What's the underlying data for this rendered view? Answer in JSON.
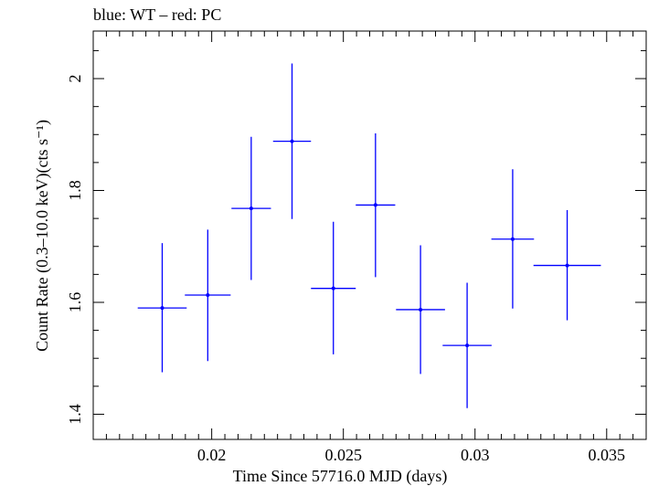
{
  "chart_data": {
    "type": "scatter",
    "title": "blue: WT – red: PC",
    "xlabel": "Time Since 57716.0 MJD (days)",
    "ylabel": "Count Rate (0.3–10.0 keV)(cts s⁻¹)",
    "xlim": [
      0.0155,
      0.0365
    ],
    "ylim": [
      1.355,
      2.085
    ],
    "x_major_ticks": [
      0.02,
      0.025,
      0.03,
      0.035
    ],
    "x_tick_labels": [
      "0.02",
      "0.025",
      "0.03",
      "0.035"
    ],
    "y_major_ticks": [
      1.4,
      1.6,
      1.8,
      2.0
    ],
    "y_tick_labels": [
      "1.4",
      "1.6",
      "1.8",
      "2"
    ],
    "grid": false,
    "legend": "none",
    "series": [
      {
        "color": "#0000ff",
        "points": [
          {
            "x": 0.01812,
            "y": 1.59,
            "xerr": 0.00093,
            "ylo": 1.475,
            "yhi": 1.706
          },
          {
            "x": 0.01985,
            "y": 1.613,
            "xerr": 0.00087,
            "ylo": 1.495,
            "yhi": 1.73
          },
          {
            "x": 0.0215,
            "y": 1.768,
            "xerr": 0.00075,
            "ylo": 1.64,
            "yhi": 1.896
          },
          {
            "x": 0.02305,
            "y": 1.888,
            "xerr": 0.00072,
            "ylo": 1.749,
            "yhi": 2.027
          },
          {
            "x": 0.02462,
            "y": 1.625,
            "xerr": 0.00085,
            "ylo": 1.507,
            "yhi": 1.744
          },
          {
            "x": 0.02622,
            "y": 1.774,
            "xerr": 0.00075,
            "ylo": 1.645,
            "yhi": 1.902
          },
          {
            "x": 0.02793,
            "y": 1.587,
            "xerr": 0.00093,
            "ylo": 1.472,
            "yhi": 1.702
          },
          {
            "x": 0.0297,
            "y": 1.523,
            "xerr": 0.00093,
            "ylo": 1.411,
            "yhi": 1.635
          },
          {
            "x": 0.03143,
            "y": 1.713,
            "xerr": 0.00081,
            "ylo": 1.589,
            "yhi": 1.838
          },
          {
            "x": 0.0335,
            "y": 1.666,
            "xerr": 0.00128,
            "ylo": 1.568,
            "yhi": 1.765
          }
        ]
      }
    ]
  }
}
